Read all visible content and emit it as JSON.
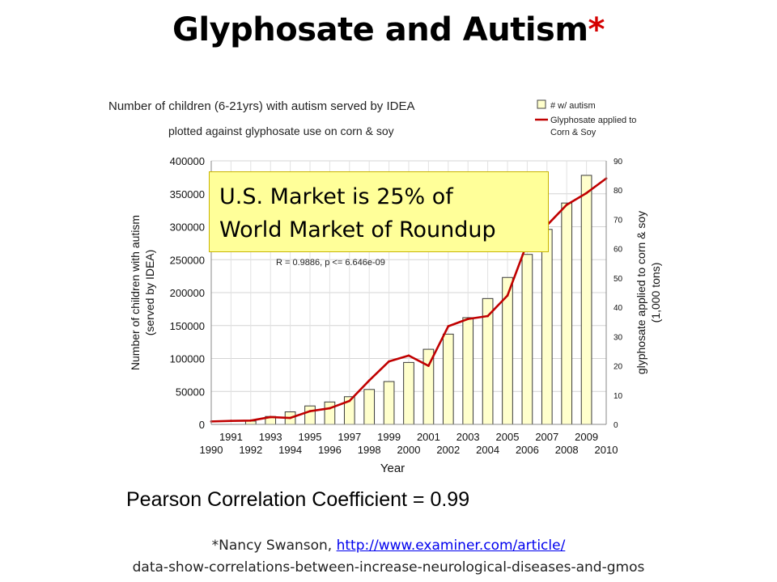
{
  "slide": {
    "title": "Glyphosate and Autism",
    "title_marker": "*",
    "callout": [
      "U.S. Market is 25% of",
      "World Market of Roundup"
    ],
    "pearson": "Pearson Correlation Coefficient = 0.99",
    "citation": {
      "prefix": "*Nancy Swanson, ",
      "link": "http://www.examiner.com/article/",
      "line2": "data-show-correlations-between-increase-neurological-diseases-and-gmos"
    }
  },
  "chart_data": {
    "type": "bar+line",
    "title": "Number of children (6-21yrs) with autism served by IDEA",
    "subtitle": "plotted against glyphosate use on corn & soy",
    "annotation": "R = 0.9886, p <= 6.646e-09",
    "xlabel": "Year",
    "ylabel": [
      "Number of children with autism",
      "(served by IDEA)"
    ],
    "y2label": [
      "glyphosate applied to corn & soy",
      "(1,000 tons)"
    ],
    "x_ticks_upper": [
      "1991",
      "1993",
      "1995",
      "1997",
      "1999",
      "2001",
      "2003",
      "2005",
      "2007",
      "2009"
    ],
    "x_ticks_lower": [
      "1990",
      "1992",
      "1994",
      "1996",
      "1998",
      "2000",
      "2002",
      "2004",
      "2006",
      "2008",
      "2010"
    ],
    "xlim": [
      1990,
      2010
    ],
    "ylim": [
      0,
      400000
    ],
    "y_ticks": [
      "0",
      "50000",
      "100000",
      "150000",
      "200000",
      "250000",
      "300000",
      "350000",
      "400000"
    ],
    "y2lim": [
      0,
      90
    ],
    "y2_ticks": [
      "0",
      "10",
      "20",
      "30",
      "40",
      "50",
      "60",
      "70",
      "80",
      "90"
    ],
    "grid": true,
    "legend": {
      "position": "top-right",
      "items": [
        {
          "label": "# w/ autism",
          "color": "#ffffcc"
        },
        {
          "label_lines": [
            "Glyphosate applied to",
            "Corn & Soy"
          ],
          "color": "#c00000"
        }
      ]
    },
    "series": [
      {
        "name": "# w/ autism",
        "kind": "bar",
        "color": "#ffffcc",
        "x": [
          1992,
          1993,
          1994,
          1995,
          1996,
          1997,
          1998,
          1999,
          2000,
          2001,
          2002,
          2003,
          2004,
          2005,
          2006,
          2007,
          2008,
          2009
        ],
        "values": [
          5000,
          12000,
          19000,
          28000,
          34000,
          42000,
          53000,
          65000,
          94000,
          114000,
          137000,
          162000,
          191000,
          223000,
          258000,
          296000,
          336000,
          378000
        ]
      },
      {
        "name": "Glyphosate applied to Corn & Soy",
        "kind": "line",
        "axis": "y2",
        "color": "#c00000",
        "x": [
          1990,
          1991,
          1992,
          1993,
          1994,
          1995,
          1996,
          1997,
          1998,
          1999,
          2000,
          2001,
          2002,
          2003,
          2004,
          2005,
          2006,
          2007,
          2008,
          2009,
          2010
        ],
        "values": [
          1,
          1.2,
          1.3,
          2.5,
          2.2,
          4.5,
          5.5,
          8,
          15,
          21.5,
          23.5,
          20,
          33.5,
          36,
          37,
          44,
          62,
          68,
          75,
          79,
          84
        ]
      }
    ]
  }
}
